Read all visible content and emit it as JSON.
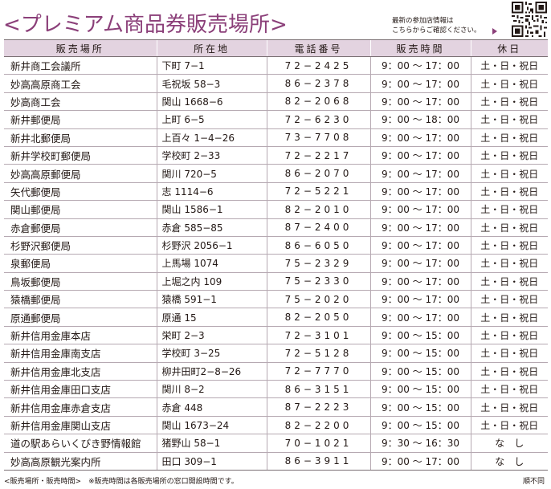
{
  "header": {
    "title": "<プレミアム商品券販売場所>",
    "note_line1": "最新の参加店情報は",
    "note_line2": "こちらからご確認ください。",
    "qr_icon": "qr-code-icon"
  },
  "table": {
    "columns": [
      "販売場所",
      "所在地",
      "電話番号",
      "販売時間",
      "休日"
    ],
    "rows": [
      [
        "新井商工会議所",
        "下町 7−1",
        "72−2425",
        "9：00 〜 17：00",
        "土・日・祝日"
      ],
      [
        "妙高高原商工会",
        "毛祝坂 58−3",
        "86−2378",
        "9：00 〜 17：00",
        "土・日・祝日"
      ],
      [
        "妙高商工会",
        "関山 1668−6",
        "82−2068",
        "9：00 〜 17：00",
        "土・日・祝日"
      ],
      [
        "新井郵便局",
        "上町 6−5",
        "72−6230",
        "9：00 〜 18：00",
        "土・日・祝日"
      ],
      [
        "新井北郵便局",
        "上百々 1−4−26",
        "73−7708",
        "9：00 〜 17：00",
        "土・日・祝日"
      ],
      [
        "新井学校町郵便局",
        "学校町 2−33",
        "72−2217",
        "9：00 〜 17：00",
        "土・日・祝日"
      ],
      [
        "妙高高原郵便局",
        "関川 720−5",
        "86−2070",
        "9：00 〜 17：00",
        "土・日・祝日"
      ],
      [
        "矢代郵便局",
        "志 1114−6",
        "72−5221",
        "9：00 〜 17：00",
        "土・日・祝日"
      ],
      [
        "関山郵便局",
        "関山 1586−1",
        "82−2010",
        "9：00 〜 17：00",
        "土・日・祝日"
      ],
      [
        "赤倉郵便局",
        "赤倉 585−85",
        "87−2400",
        "9：00 〜 17：00",
        "土・日・祝日"
      ],
      [
        "杉野沢郵便局",
        "杉野沢 2056−1",
        "86−6050",
        "9：00 〜 17：00",
        "土・日・祝日"
      ],
      [
        "泉郵便局",
        "上馬場 1074",
        "75−2329",
        "9：00 〜 17：00",
        "土・日・祝日"
      ],
      [
        "鳥坂郵便局",
        "上堀之内 109",
        "75−2330",
        "9：00 〜 17：00",
        "土・日・祝日"
      ],
      [
        "猿橋郵便局",
        "猿橋 591−1",
        "75−2020",
        "9：00 〜 17：00",
        "土・日・祝日"
      ],
      [
        "原通郵便局",
        "原通 15",
        "82−2050",
        "9：00 〜 17：00",
        "土・日・祝日"
      ],
      [
        "新井信用金庫本店",
        "栄町 2−3",
        "72−3101",
        "9：00 〜 15：00",
        "土・日・祝日"
      ],
      [
        "新井信用金庫南支店",
        "学校町 3−25",
        "72−5128",
        "9：00 〜 15：00",
        "土・日・祝日"
      ],
      [
        "新井信用金庫北支店",
        "柳井田町2−8−26",
        "72−7770",
        "9：00 〜 15：00",
        "土・日・祝日"
      ],
      [
        "新井信用金庫田口支店",
        "関川 8−2",
        "86−3151",
        "9：00 〜 15：00",
        "土・日・祝日"
      ],
      [
        "新井信用金庫赤倉支店",
        "赤倉 448",
        "87−2223",
        "9：00 〜 15：00",
        "土・日・祝日"
      ],
      [
        "新井信用金庫関山支店",
        "関山 1673−24",
        "82−2200",
        "9：00 〜 15：00",
        "土・日・祝日"
      ],
      [
        "道の駅あらいくびき野情報館",
        "猪野山 58−1",
        "70−1021",
        "9：30 〜 16：30",
        "な　し"
      ],
      [
        "妙高高原観光案内所",
        "田口 309−1",
        "86−3911",
        "9：00 〜 17：00",
        "な　し"
      ]
    ]
  },
  "footer": {
    "left": "<販売場所・販売時間>　※販売時間は各販売場所の窓口開設時間です。",
    "right": "順不同"
  }
}
